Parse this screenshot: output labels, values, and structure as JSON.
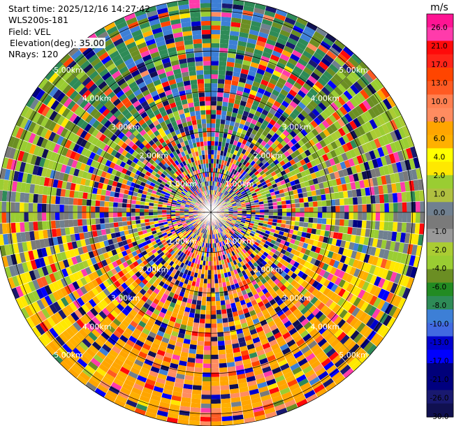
{
  "info": {
    "start_time": "Start time: 2025/12/16 14:27:42",
    "site": "WLS200s-181",
    "field": "Field: VEL",
    "elevation": "Elevation(deg): 35.00",
    "nrays": "NRays: 120"
  },
  "colorbar": {
    "unit": "m/s",
    "ticks": [
      "26.0",
      "21.0",
      "17.0",
      "13.0",
      "10.0",
      "8.0",
      "6.0",
      "4.0",
      "2.0",
      "1.0",
      "0.0",
      "-1.0",
      "-2.0",
      "-4.0",
      "-6.0",
      "-8.0",
      "-10.0",
      "-13.0",
      "-17.0",
      "-21.0",
      "-26.0",
      "-30.0"
    ],
    "colors": [
      "#ff1493",
      "#ff3bab",
      "#ff0a0a",
      "#ff2418",
      "#ff4500",
      "#ff5a22",
      "#ff7f50",
      "#ff8c60",
      "#ffa500",
      "#ffb000",
      "#ffff00",
      "#ffe800",
      "#9acd32",
      "#b0c040",
      "#708090",
      "#7a7a7a",
      "#999999",
      "#aacc33",
      "#9acd32",
      "#6b8e23",
      "#228b22",
      "#2e8b57",
      "#3d7fd6",
      "#4169e1",
      "#0000cd",
      "#0000ff",
      "#00007a",
      "#000080",
      "#191970",
      "#101050"
    ]
  },
  "chart_data": {
    "type": "heatmap",
    "subtype": "polar_ppi",
    "field": "VEL",
    "units": "m/s",
    "nrays": 120,
    "elevation_deg": 35.0,
    "range_rings_km": [
      1.0,
      2.0,
      3.0,
      4.0,
      5.0
    ],
    "range_ring_labels": [
      "1.00km",
      "2.00km",
      "3.00km",
      "4.00km",
      "5.00km"
    ],
    "max_range_km": 5.3,
    "color_levels": [
      -30.0,
      -26.0,
      -21.0,
      -17.0,
      -13.0,
      -10.0,
      -8.0,
      -6.0,
      -4.0,
      -2.0,
      -1.0,
      0.0,
      1.0,
      2.0,
      4.0,
      6.0,
      8.0,
      10.0,
      13.0,
      17.0,
      21.0,
      26.0
    ],
    "dominant_pattern": [
      {
        "sector": "west",
        "velocity_ms": 5.0
      },
      {
        "sector": "south",
        "velocity_ms": 7.5
      },
      {
        "sector": "south-east",
        "velocity_ms": 7.0
      },
      {
        "sector": "east",
        "velocity_ms": -2.0
      },
      {
        "sector": "north-east",
        "velocity_ms": -6.0
      },
      {
        "sector": "north-west",
        "velocity_ms": -9.0
      }
    ]
  }
}
